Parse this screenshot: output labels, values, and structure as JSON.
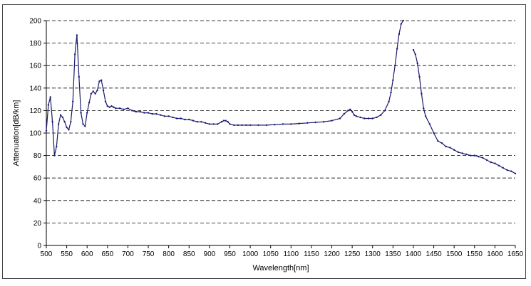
{
  "chart_data": {
    "type": "line",
    "title": "",
    "xlabel": "Wavelength[nm]",
    "ylabel": "Attenuation[dB/km]",
    "xlim": [
      500,
      1650
    ],
    "ylim": [
      0,
      200
    ],
    "x_ticks": [
      500,
      550,
      600,
      650,
      700,
      750,
      800,
      850,
      900,
      950,
      1000,
      1050,
      1100,
      1150,
      1200,
      1250,
      1300,
      1350,
      1400,
      1450,
      1500,
      1550,
      1600,
      1650
    ],
    "y_ticks": [
      0,
      20,
      40,
      60,
      80,
      100,
      120,
      140,
      160,
      180,
      200
    ],
    "grid": "horizontal dashed",
    "legend": "none",
    "line_color": "#1a1a6e",
    "series": [
      {
        "segments": [
          {
            "x": [
              500,
              505,
              510,
              515,
              520,
              525,
              530,
              535,
              540,
              545,
              550,
              555,
              560,
              565,
              570,
              575,
              580,
              585,
              590,
              595,
              600,
              605,
              610,
              615,
              620,
              625,
              630,
              635,
              640,
              645,
              650,
              655,
              660,
              665,
              670,
              680,
              690,
              700,
              710,
              720,
              730,
              740,
              750,
              760,
              770,
              780,
              790,
              800,
              810,
              820,
              830,
              840,
              850,
              860,
              870,
              880,
              890,
              900,
              910,
              920,
              930,
              935,
              940,
              945,
              950,
              960,
              970,
              980,
              990,
              1000,
              1020,
              1040,
              1060,
              1080,
              1100,
              1120,
              1140,
              1160,
              1180,
              1200,
              1220,
              1230,
              1240,
              1245,
              1250,
              1255,
              1260,
              1270,
              1280,
              1290,
              1300,
              1310,
              1320,
              1330,
              1340,
              1345,
              1350,
              1355,
              1360,
              1365,
              1370,
              1375
            ],
            "y": [
              102,
              125,
              132,
              110,
              80,
              88,
              108,
              116,
              114,
              110,
              105,
              103,
              110,
              128,
              170,
              187,
              150,
              118,
              108,
              106,
              118,
              127,
              135,
              137,
              135,
              138,
              146,
              147,
              138,
              128,
              124,
              123,
              124,
              123,
              122,
              122,
              121,
              122,
              120,
              119,
              119,
              118,
              118,
              117,
              117,
              116,
              115,
              115,
              114,
              113,
              113,
              112,
              112,
              111,
              110,
              110,
              109,
              108,
              108,
              108,
              110,
              111,
              111,
              110,
              108,
              107,
              107,
              107,
              107,
              107,
              107,
              107,
              107.5,
              108,
              108,
              108.5,
              109,
              109.5,
              110,
              111,
              113,
              117,
              120,
              121,
              119,
              116,
              115,
              114,
              113,
              113,
              113,
              114,
              116,
              120,
              128,
              136,
              147,
              160,
              175,
              188,
              197,
              201
            ]
          },
          {
            "x": [
              1400,
              1405,
              1410,
              1415,
              1420,
              1425,
              1430,
              1440,
              1450,
              1460,
              1470,
              1480,
              1490,
              1500,
              1510,
              1520,
              1530,
              1540,
              1550,
              1560,
              1570,
              1580,
              1590,
              1600,
              1610,
              1620,
              1630,
              1640,
              1650
            ],
            "y": [
              174,
              170,
              162,
              150,
              135,
              122,
              115,
              108,
              100,
              93,
              91,
              88,
              87,
              85,
              83,
              82,
              81,
              80,
              80,
              79,
              78,
              76,
              74,
              73,
              71,
              69,
              67,
              66,
              64
            ]
          }
        ]
      }
    ]
  }
}
